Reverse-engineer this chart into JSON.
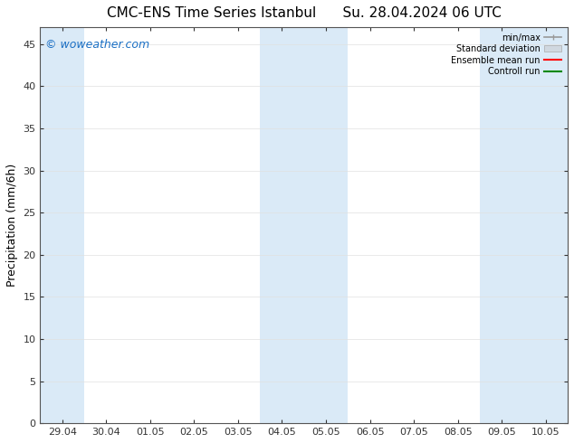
{
  "title_left": "CMC-ENS Time Series Istanbul",
  "title_right": "Su. 28.04.2024 06 UTC",
  "ylabel": "Precipitation (mm/6h)",
  "xtick_labels": [
    "29.04",
    "30.04",
    "01.05",
    "02.05",
    "03.05",
    "04.05",
    "05.05",
    "06.05",
    "07.05",
    "08.05",
    "09.05",
    "10.05"
  ],
  "ytick_values": [
    0,
    5,
    10,
    15,
    20,
    25,
    30,
    35,
    40,
    45
  ],
  "ylim": [
    0,
    47
  ],
  "xlim": [
    -0.5,
    11.5
  ],
  "shaded_regions": [
    {
      "xstart": -0.5,
      "xend": 0.5
    },
    {
      "xstart": 4.5,
      "xend": 6.5
    },
    {
      "xstart": 9.5,
      "xend": 11.5
    }
  ],
  "shade_color": "#daeaf7",
  "background_color": "#ffffff",
  "watermark": "© woweather.com",
  "watermark_color": "#1a6fc4",
  "legend_labels": [
    "min/max",
    "Standard deviation",
    "Ensemble mean run",
    "Controll run"
  ],
  "legend_line_colors": [
    "#999999",
    "#cccccc",
    "#ff0000",
    "#008800"
  ],
  "title_fontsize": 11,
  "axis_label_fontsize": 9,
  "tick_fontsize": 8,
  "watermark_fontsize": 9,
  "grid_color": "#e0e0e0",
  "grid_linewidth": 0.5,
  "spine_color": "#555555",
  "spine_linewidth": 0.8
}
